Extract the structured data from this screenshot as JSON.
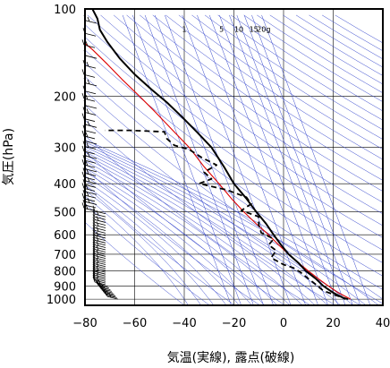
{
  "chart_data": {
    "type": "line",
    "title": "",
    "xlabel": "気温(実線), 露点(破線)",
    "ylabel": "気圧(hPa)",
    "xlim": [
      -80,
      40
    ],
    "ylim": [
      1050,
      100
    ],
    "y_scale": "log",
    "x_ticks": [
      "−80",
      "−60",
      "−40",
      "−20",
      "0",
      "20",
      "40"
    ],
    "y_ticks": [
      "100",
      "200",
      "300",
      "400",
      "500",
      "600",
      "700",
      "800",
      "900",
      "1000"
    ],
    "mixing_ratio_labels": [
      "1",
      "5",
      "10",
      "15",
      "20g"
    ],
    "series": [
      {
        "style": "solid",
        "color": "#000000",
        "points": [
          [
            25,
            1000
          ],
          [
            20,
            950
          ],
          [
            16,
            900
          ],
          [
            13,
            850
          ],
          [
            9,
            800
          ],
          [
            6,
            750
          ],
          [
            2,
            700
          ],
          [
            -1,
            650
          ],
          [
            -4,
            600
          ],
          [
            -7,
            550
          ],
          [
            -11,
            500
          ],
          [
            -15,
            450
          ],
          [
            -20,
            400
          ],
          [
            -24,
            350
          ],
          [
            -29,
            300
          ],
          [
            -35,
            265
          ],
          [
            -41,
            235
          ],
          [
            -47,
            210
          ],
          [
            -53,
            190
          ],
          [
            -60,
            168
          ],
          [
            -66,
            148
          ],
          [
            -71,
            130
          ],
          [
            -74,
            118
          ],
          [
            -75,
            108
          ],
          [
            -77,
            100
          ]
        ]
      },
      {
        "style": "dashed",
        "color": "#000000",
        "points": [
          [
            26,
            1000
          ],
          [
            21,
            970
          ],
          [
            16,
            935
          ],
          [
            13,
            890
          ],
          [
            10,
            850
          ],
          [
            7,
            810
          ],
          [
            4,
            780
          ],
          [
            0,
            760
          ],
          [
            -5,
            720
          ],
          [
            -3,
            680
          ],
          [
            -6,
            650
          ],
          [
            -4,
            620
          ],
          [
            -9,
            590
          ],
          [
            -10,
            555
          ],
          [
            -10,
            520
          ],
          [
            -17,
            495
          ],
          [
            -13,
            470
          ],
          [
            -15,
            445
          ],
          [
            -23,
            420
          ],
          [
            -34,
            400
          ],
          [
            -29,
            385
          ],
          [
            -32,
            365
          ],
          [
            -27,
            345
          ],
          [
            -33,
            325
          ],
          [
            -38,
            305
          ],
          [
            -44,
            295
          ],
          [
            -47,
            280
          ],
          [
            -48,
            265
          ],
          [
            -62,
            262
          ],
          [
            -72,
            262
          ]
        ]
      }
    ],
    "reference_series": [
      {
        "style": "solid",
        "color": "#dd0000",
        "points": [
          [
            27,
            1000
          ],
          [
            22,
            950
          ],
          [
            18,
            900
          ],
          [
            14,
            850
          ],
          [
            10,
            800
          ],
          [
            6,
            750
          ],
          [
            2,
            700
          ],
          [
            -2,
            650
          ],
          [
            -6,
            600
          ],
          [
            -11,
            550
          ],
          [
            -16,
            500
          ],
          [
            -21,
            450
          ],
          [
            -26,
            400
          ],
          [
            -32,
            350
          ],
          [
            -38,
            300
          ],
          [
            -45,
            260
          ],
          [
            -52,
            225
          ],
          [
            -58,
            200
          ],
          [
            -65,
            175
          ],
          [
            -71,
            155
          ],
          [
            -77,
            138
          ],
          [
            -83,
            125
          ]
        ]
      }
    ],
    "grid": true,
    "background_lines": [
      "dry adiabats",
      "moist adiabats",
      "mixing ratio lines"
    ],
    "background_line_color": "#3344cc"
  }
}
